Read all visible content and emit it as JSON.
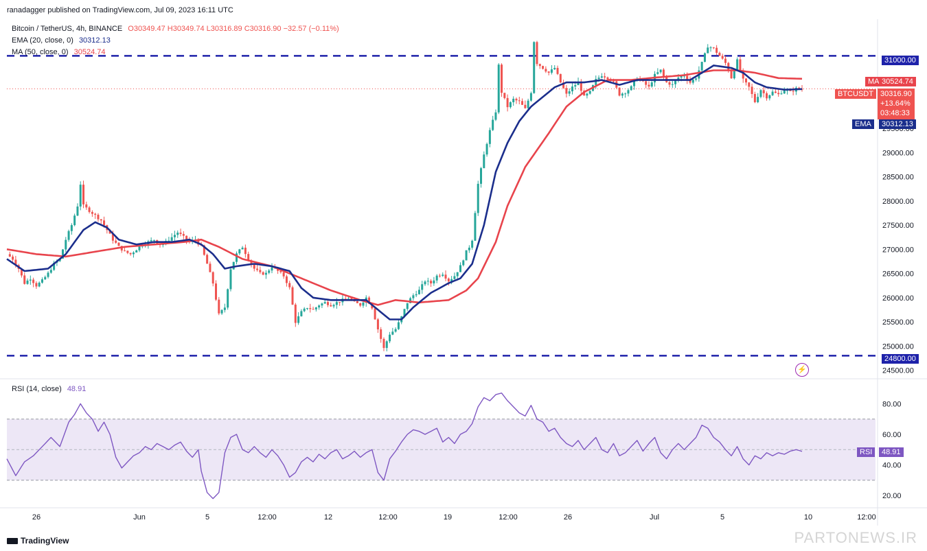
{
  "header": {
    "published": "ranadagger published on TradingView.com, Jul 09, 2023 16:11 UTC"
  },
  "legend": {
    "symbol": "Bitcoin / TetherUS, 4h, BINANCE",
    "ohlc": "O30349.47 H30349.74 L30316.89 C30316.90 −32.57 (−0.11%)",
    "ema_label": "EMA (20, close, 0)",
    "ema_value": "30312.13",
    "ma_label": "MA (50, close, 0)",
    "ma_value": "30524.74",
    "rsi_label": "RSI (14, close)",
    "rsi_value": "48.91"
  },
  "tags": {
    "level_high": "31000.00",
    "level_low": "24800.00",
    "ma_name": "MA",
    "ma_value": "30524.74",
    "symbol": "BTCUSDT",
    "last_price": "30316.90",
    "change": "+13.64%",
    "countdown": "03:48:33",
    "ema_name": "EMA",
    "ema_value": "30312.13",
    "rsi_name": "RSI",
    "rsi_value": "48.91"
  },
  "brand": "TradingView",
  "watermark": "PARTONEWS.IR",
  "colors": {
    "up": "#26a69a",
    "down": "#ef5350",
    "ema": "#1b2e8c",
    "ma": "#e8444c",
    "rsi": "#7e57c2",
    "rsi_band": "#ede7f6",
    "level": "#1e22aa",
    "text": "#131722"
  },
  "chart_data": {
    "type": "candlestick",
    "price_axis": {
      "ticks": [
        "24500.00",
        "25000.00",
        "25500.00",
        "26000.00",
        "26500.00",
        "27000.00",
        "27500.00",
        "28000.00",
        "28500.00",
        "29000.00",
        "29500.00"
      ],
      "range": [
        24380,
        31700
      ]
    },
    "rsi_axis": {
      "ticks": [
        "20.00",
        "40.00",
        "60.00",
        "80.00"
      ],
      "range": [
        12,
        95
      ],
      "band": [
        30,
        70
      ],
      "mid": 50
    },
    "time_axis": {
      "ticks": [
        "26",
        "Jun",
        "5",
        "12:00",
        "12",
        "12:00",
        "19",
        "12:00",
        "26",
        "Jul",
        "5",
        "10",
        "12:00"
      ],
      "positions": [
        53,
        203,
        302,
        389,
        478,
        565,
        652,
        740,
        827,
        953,
        1052,
        1177,
        1262
      ]
    },
    "levels": [
      31000,
      24800
    ],
    "last_price": 30316.9,
    "price_path": [
      [
        0,
        26900
      ],
      [
        2,
        26800
      ],
      [
        4,
        26600
      ],
      [
        6,
        26300
      ],
      [
        8,
        26400
      ],
      [
        10,
        26250
      ],
      [
        12,
        26350
      ],
      [
        14,
        26500
      ],
      [
        16,
        26700
      ],
      [
        18,
        26800
      ],
      [
        20,
        27200
      ],
      [
        22,
        27500
      ],
      [
        24,
        27900
      ],
      [
        25,
        28350
      ],
      [
        26,
        27900
      ],
      [
        28,
        27800
      ],
      [
        30,
        27700
      ],
      [
        32,
        27600
      ],
      [
        34,
        27400
      ],
      [
        36,
        27200
      ],
      [
        38,
        27050
      ],
      [
        40,
        26950
      ],
      [
        42,
        26900
      ],
      [
        44,
        27000
      ],
      [
        46,
        27100
      ],
      [
        48,
        27150
      ],
      [
        50,
        27200
      ],
      [
        52,
        27100
      ],
      [
        54,
        27150
      ],
      [
        56,
        27250
      ],
      [
        58,
        27350
      ],
      [
        60,
        27250
      ],
      [
        62,
        27150
      ],
      [
        64,
        27200
      ],
      [
        66,
        27050
      ],
      [
        68,
        26700
      ],
      [
        70,
        26300
      ],
      [
        72,
        25650
      ],
      [
        74,
        25800
      ],
      [
        76,
        26600
      ],
      [
        78,
        26900
      ],
      [
        80,
        27050
      ],
      [
        82,
        26800
      ],
      [
        84,
        26600
      ],
      [
        86,
        26500
      ],
      [
        88,
        26500
      ],
      [
        90,
        26650
      ],
      [
        92,
        26550
      ],
      [
        94,
        26450
      ],
      [
        96,
        26200
      ],
      [
        98,
        25500
      ],
      [
        100,
        25700
      ],
      [
        102,
        25800
      ],
      [
        104,
        25750
      ],
      [
        106,
        25850
      ],
      [
        108,
        25900
      ],
      [
        110,
        25850
      ],
      [
        112,
        25900
      ],
      [
        114,
        25950
      ],
      [
        116,
        26000
      ],
      [
        118,
        25900
      ],
      [
        120,
        25850
      ],
      [
        122,
        26000
      ],
      [
        124,
        25800
      ],
      [
        126,
        25350
      ],
      [
        128,
        24950
      ],
      [
        130,
        25250
      ],
      [
        132,
        25350
      ],
      [
        134,
        25600
      ],
      [
        136,
        25900
      ],
      [
        138,
        26050
      ],
      [
        140,
        26150
      ],
      [
        142,
        26350
      ],
      [
        144,
        26300
      ],
      [
        146,
        26450
      ],
      [
        148,
        26500
      ],
      [
        150,
        26350
      ],
      [
        152,
        26450
      ],
      [
        154,
        26650
      ],
      [
        156,
        26950
      ],
      [
        157,
        27050
      ],
      [
        158,
        27200
      ],
      [
        160,
        28350
      ],
      [
        162,
        28950
      ],
      [
        164,
        29450
      ],
      [
        166,
        29850
      ],
      [
        167,
        30800
      ],
      [
        168,
        30250
      ],
      [
        170,
        29950
      ],
      [
        172,
        30100
      ],
      [
        174,
        30050
      ],
      [
        176,
        29900
      ],
      [
        178,
        30250
      ],
      [
        179,
        31300
      ],
      [
        180,
        30850
      ],
      [
        182,
        30750
      ],
      [
        184,
        30650
      ],
      [
        186,
        30750
      ],
      [
        188,
        30450
      ],
      [
        190,
        30200
      ],
      [
        192,
        30350
      ],
      [
        194,
        30450
      ],
      [
        196,
        30150
      ],
      [
        198,
        30250
      ],
      [
        200,
        30500
      ],
      [
        202,
        30600
      ],
      [
        204,
        30550
      ],
      [
        206,
        30450
      ],
      [
        208,
        30200
      ],
      [
        210,
        30250
      ],
      [
        212,
        30350
      ],
      [
        214,
        30550
      ],
      [
        216,
        30450
      ],
      [
        218,
        30350
      ],
      [
        220,
        30600
      ],
      [
        222,
        30700
      ],
      [
        224,
        30450
      ],
      [
        226,
        30400
      ],
      [
        228,
        30550
      ],
      [
        230,
        30600
      ],
      [
        232,
        30450
      ],
      [
        234,
        30550
      ],
      [
        236,
        30850
      ],
      [
        238,
        31200
      ],
      [
        240,
        31150
      ],
      [
        242,
        31000
      ],
      [
        244,
        30850
      ],
      [
        246,
        30550
      ],
      [
        248,
        30900
      ],
      [
        250,
        30500
      ],
      [
        252,
        30350
      ],
      [
        254,
        30050
      ],
      [
        256,
        30300
      ],
      [
        258,
        30150
      ],
      [
        260,
        30250
      ],
      [
        262,
        30200
      ],
      [
        264,
        30300
      ],
      [
        266,
        30250
      ],
      [
        268,
        30320
      ],
      [
        270,
        30317
      ]
    ],
    "ema_path": [
      [
        0,
        26800
      ],
      [
        6,
        26550
      ],
      [
        14,
        26600
      ],
      [
        20,
        26900
      ],
      [
        26,
        27400
      ],
      [
        30,
        27560
      ],
      [
        34,
        27450
      ],
      [
        38,
        27200
      ],
      [
        44,
        27100
      ],
      [
        50,
        27150
      ],
      [
        56,
        27150
      ],
      [
        62,
        27200
      ],
      [
        66,
        27100
      ],
      [
        70,
        26900
      ],
      [
        74,
        26600
      ],
      [
        78,
        26650
      ],
      [
        84,
        26700
      ],
      [
        90,
        26650
      ],
      [
        96,
        26550
      ],
      [
        100,
        26200
      ],
      [
        104,
        26000
      ],
      [
        110,
        25950
      ],
      [
        116,
        25950
      ],
      [
        122,
        25950
      ],
      [
        126,
        25750
      ],
      [
        130,
        25550
      ],
      [
        134,
        25550
      ],
      [
        138,
        25800
      ],
      [
        144,
        26100
      ],
      [
        150,
        26300
      ],
      [
        154,
        26400
      ],
      [
        158,
        26700
      ],
      [
        162,
        27500
      ],
      [
        166,
        28600
      ],
      [
        170,
        29200
      ],
      [
        174,
        29650
      ],
      [
        178,
        29950
      ],
      [
        182,
        30150
      ],
      [
        186,
        30350
      ],
      [
        190,
        30450
      ],
      [
        196,
        30450
      ],
      [
        202,
        30500
      ],
      [
        208,
        30400
      ],
      [
        214,
        30500
      ],
      [
        220,
        30500
      ],
      [
        226,
        30500
      ],
      [
        232,
        30500
      ],
      [
        236,
        30650
      ],
      [
        240,
        30800
      ],
      [
        246,
        30750
      ],
      [
        250,
        30650
      ],
      [
        254,
        30450
      ],
      [
        258,
        30350
      ],
      [
        264,
        30300
      ],
      [
        270,
        30312
      ]
    ],
    "ma_path": [
      [
        0,
        27000
      ],
      [
        10,
        26900
      ],
      [
        20,
        26850
      ],
      [
        30,
        26950
      ],
      [
        40,
        27050
      ],
      [
        50,
        27100
      ],
      [
        60,
        27150
      ],
      [
        66,
        27200
      ],
      [
        72,
        27050
      ],
      [
        80,
        26800
      ],
      [
        90,
        26650
      ],
      [
        100,
        26400
      ],
      [
        110,
        26150
      ],
      [
        120,
        25950
      ],
      [
        126,
        25850
      ],
      [
        132,
        25950
      ],
      [
        140,
        25900
      ],
      [
        150,
        25950
      ],
      [
        156,
        26150
      ],
      [
        160,
        26400
      ],
      [
        166,
        27150
      ],
      [
        170,
        27900
      ],
      [
        176,
        28700
      ],
      [
        184,
        29400
      ],
      [
        190,
        29950
      ],
      [
        196,
        30250
      ],
      [
        204,
        30500
      ],
      [
        212,
        30500
      ],
      [
        220,
        30550
      ],
      [
        230,
        30600
      ],
      [
        240,
        30700
      ],
      [
        248,
        30700
      ],
      [
        254,
        30650
      ],
      [
        262,
        30540
      ],
      [
        270,
        30525
      ]
    ],
    "rsi_path": [
      [
        0,
        44
      ],
      [
        3,
        33
      ],
      [
        6,
        42
      ],
      [
        9,
        46
      ],
      [
        12,
        52
      ],
      [
        15,
        58
      ],
      [
        18,
        52
      ],
      [
        21,
        68
      ],
      [
        23,
        73
      ],
      [
        25,
        80
      ],
      [
        27,
        74
      ],
      [
        29,
        70
      ],
      [
        31,
        62
      ],
      [
        33,
        68
      ],
      [
        35,
        60
      ],
      [
        37,
        45
      ],
      [
        39,
        38
      ],
      [
        41,
        42
      ],
      [
        43,
        46
      ],
      [
        45,
        48
      ],
      [
        47,
        52
      ],
      [
        49,
        50
      ],
      [
        51,
        54
      ],
      [
        53,
        52
      ],
      [
        55,
        50
      ],
      [
        57,
        53
      ],
      [
        59,
        55
      ],
      [
        61,
        49
      ],
      [
        63,
        45
      ],
      [
        65,
        50
      ],
      [
        66,
        36
      ],
      [
        68,
        22
      ],
      [
        70,
        18
      ],
      [
        72,
        22
      ],
      [
        74,
        48
      ],
      [
        76,
        58
      ],
      [
        78,
        60
      ],
      [
        80,
        50
      ],
      [
        82,
        48
      ],
      [
        84,
        52
      ],
      [
        86,
        48
      ],
      [
        88,
        45
      ],
      [
        90,
        50
      ],
      [
        92,
        46
      ],
      [
        94,
        40
      ],
      [
        96,
        32
      ],
      [
        98,
        35
      ],
      [
        100,
        42
      ],
      [
        102,
        45
      ],
      [
        104,
        42
      ],
      [
        106,
        47
      ],
      [
        108,
        44
      ],
      [
        110,
        48
      ],
      [
        112,
        50
      ],
      [
        114,
        44
      ],
      [
        116,
        46
      ],
      [
        118,
        49
      ],
      [
        120,
        45
      ],
      [
        122,
        48
      ],
      [
        124,
        50
      ],
      [
        126,
        35
      ],
      [
        128,
        30
      ],
      [
        130,
        44
      ],
      [
        132,
        49
      ],
      [
        134,
        55
      ],
      [
        136,
        60
      ],
      [
        138,
        63
      ],
      [
        140,
        62
      ],
      [
        142,
        60
      ],
      [
        144,
        62
      ],
      [
        146,
        64
      ],
      [
        148,
        55
      ],
      [
        150,
        58
      ],
      [
        152,
        54
      ],
      [
        154,
        60
      ],
      [
        156,
        62
      ],
      [
        158,
        67
      ],
      [
        160,
        78
      ],
      [
        162,
        84
      ],
      [
        164,
        82
      ],
      [
        166,
        86
      ],
      [
        168,
        87
      ],
      [
        170,
        82
      ],
      [
        172,
        78
      ],
      [
        174,
        74
      ],
      [
        176,
        72
      ],
      [
        178,
        79
      ],
      [
        180,
        70
      ],
      [
        182,
        68
      ],
      [
        184,
        62
      ],
      [
        186,
        64
      ],
      [
        188,
        58
      ],
      [
        190,
        54
      ],
      [
        192,
        52
      ],
      [
        194,
        56
      ],
      [
        196,
        50
      ],
      [
        198,
        54
      ],
      [
        200,
        58
      ],
      [
        202,
        50
      ],
      [
        204,
        48
      ],
      [
        206,
        54
      ],
      [
        208,
        46
      ],
      [
        210,
        48
      ],
      [
        212,
        52
      ],
      [
        214,
        56
      ],
      [
        216,
        49
      ],
      [
        218,
        54
      ],
      [
        220,
        58
      ],
      [
        222,
        48
      ],
      [
        224,
        44
      ],
      [
        226,
        50
      ],
      [
        228,
        54
      ],
      [
        230,
        50
      ],
      [
        232,
        54
      ],
      [
        234,
        58
      ],
      [
        236,
        66
      ],
      [
        238,
        64
      ],
      [
        240,
        58
      ],
      [
        242,
        55
      ],
      [
        244,
        50
      ],
      [
        246,
        46
      ],
      [
        248,
        52
      ],
      [
        250,
        44
      ],
      [
        252,
        40
      ],
      [
        254,
        46
      ],
      [
        256,
        44
      ],
      [
        258,
        48
      ],
      [
        260,
        46
      ],
      [
        262,
        48
      ],
      [
        264,
        47
      ],
      [
        266,
        49
      ],
      [
        268,
        50
      ],
      [
        270,
        48.9
      ]
    ]
  }
}
